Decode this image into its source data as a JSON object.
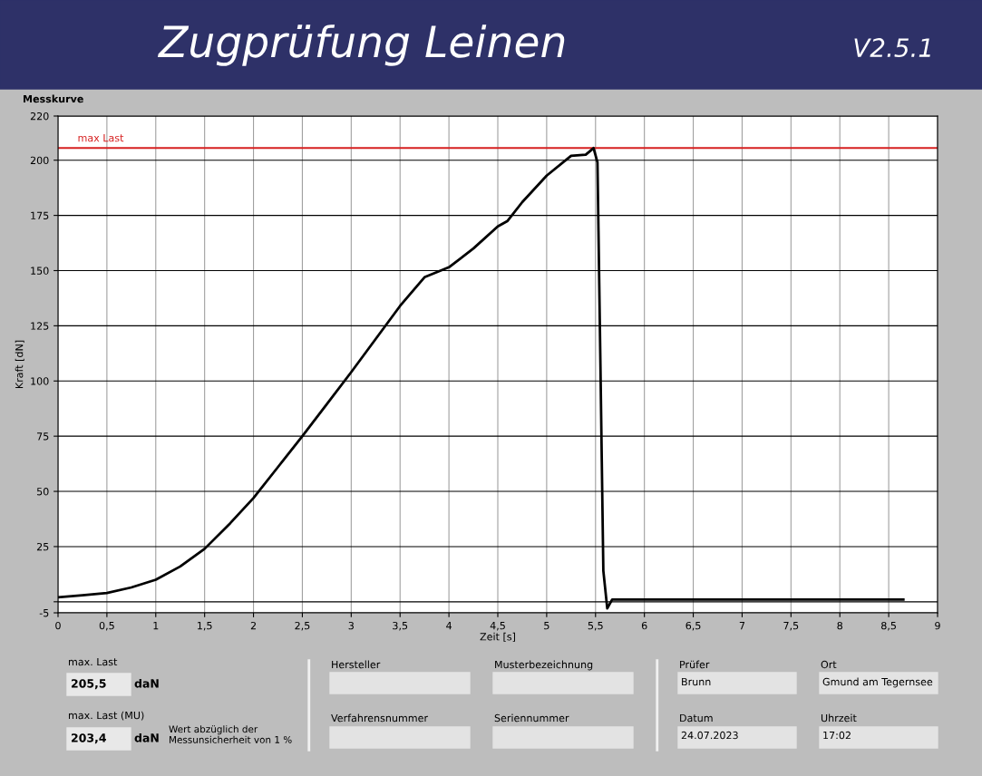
{
  "chart_data": [
    {
      "type": "line",
      "title": "Messkurve",
      "xlabel": "Zeit [s]",
      "ylabel": "Kraft [dN]",
      "x": [
        0,
        0.25,
        0.5,
        0.75,
        1.0,
        1.25,
        1.5,
        1.75,
        2.0,
        2.25,
        2.5,
        2.75,
        3.0,
        3.25,
        3.5,
        3.75,
        4.0,
        4.25,
        4.5,
        4.6,
        4.75,
        5.0,
        5.25,
        5.4,
        5.48,
        5.52,
        5.55,
        5.58,
        5.62,
        5.67,
        6.0,
        7.0,
        8.0,
        8.65
      ],
      "series": [
        {
          "color": "#000000",
          "values": [
            2,
            3,
            4,
            6.5,
            10,
            16,
            24,
            35,
            47,
            61,
            75,
            89.5,
            104,
            119,
            134,
            147,
            151.5,
            160,
            170,
            172.5,
            181,
            193,
            202,
            202.5,
            205.5,
            199,
            108,
            14,
            -3,
            1,
            1,
            1,
            1,
            1
          ]
        }
      ],
      "xlim": [
        0,
        9
      ],
      "ylim": [
        -5,
        220
      ],
      "xticks": [
        0,
        {
          "value": 0.5,
          "label": "0,5"
        },
        1,
        {
          "value": 1.5,
          "label": "1,5"
        },
        2,
        {
          "value": 2.5,
          "label": "2,5"
        },
        3,
        {
          "value": 3.5,
          "label": "3,5"
        },
        4,
        {
          "value": 4.5,
          "label": "4,5"
        },
        5,
        {
          "value": 5.5,
          "label": "5,5"
        },
        6,
        {
          "value": 6.5,
          "label": "6,5"
        },
        7,
        {
          "value": 7.5,
          "label": "7,5"
        },
        8,
        {
          "value": 8.5,
          "label": "8,5"
        },
        9
      ],
      "yticks": [
        -5,
        {
          "value": 0,
          "label": null
        },
        25,
        50,
        75,
        100,
        125,
        150,
        175,
        200,
        220
      ],
      "grid": true,
      "marker": "none",
      "line_style": "solid",
      "ref_lines": [
        {
          "axis": "y",
          "value": 205.5,
          "label": "max Last",
          "color": "#d62020"
        }
      ]
    },
    {
      "type": "other",
      "title": "Zugprüfung Leinen",
      "subtitle": "V2.5.1",
      "annotations": [
        "max. Last",
        "205,5",
        "daN",
        "max. Last (MU)",
        "203,4",
        "daN",
        "Wert abzüglich der\nMessunsicherheit von 1 %",
        "Hersteller",
        "Musterbezeichnung",
        "Verfahrensnummer",
        "Seriennummer",
        "Prüfer",
        "Brunn",
        "Ort",
        "Gmund am Tegernsee",
        "Datum",
        "24.07.2023",
        "Uhrzeit",
        "17:02"
      ]
    }
  ]
}
